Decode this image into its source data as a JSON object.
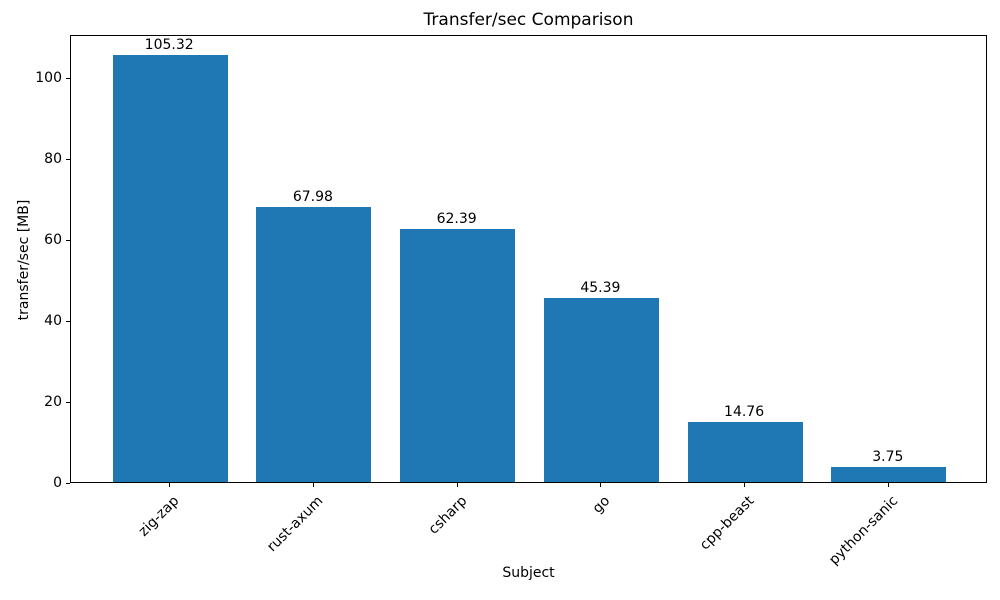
{
  "chart_data": {
    "type": "bar",
    "title": "Transfer/sec Comparison",
    "xlabel": "Subject",
    "ylabel": "transfer/sec [MB]",
    "categories": [
      "zig-zap",
      "rust-axum",
      "csharp",
      "go",
      "cpp-beast",
      "python-sanic"
    ],
    "values": [
      105.32,
      67.98,
      62.39,
      45.39,
      14.76,
      3.75
    ],
    "value_labels": [
      "105.32",
      "67.98",
      "62.39",
      "45.39",
      "14.76",
      "3.75"
    ],
    "yticks": [
      0,
      20,
      40,
      60,
      80,
      100
    ],
    "ylim": [
      0,
      110.59
    ],
    "bar_color": "#1f77b4",
    "grid": false,
    "legend": null,
    "bar_label_position": "above-bar",
    "x_tick_rotation_deg": 45
  }
}
